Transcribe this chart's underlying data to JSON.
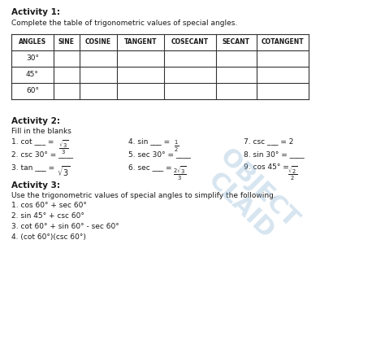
{
  "title_activity1": "Activity 1:",
  "subtitle1": "Complete the table of trigonometric values of special angles.",
  "table_headers": [
    "ANGLES",
    "SINE",
    "COSINE",
    "TANGENT",
    "COSECANT",
    "SECANT",
    "COTANGENT"
  ],
  "table_rows": [
    "30°",
    "45°",
    "60°"
  ],
  "title_activity2": "Activity 2:",
  "fill_blanks_title": "Fill in the blanks",
  "title_activity3": "Activity 3:",
  "subtitle3": "Use the trigonometric values of special angles to simplify the following.",
  "activity3_items": [
    "1. cos 60° + sec 60°",
    "2. sin 45° + csc 60°",
    "3. cot 60° + sin 60° - sec 60°",
    "4. (cot 60°)(csc 60°)"
  ],
  "bg_color": "#ffffff",
  "text_color": "#1a1a1a",
  "watermark_color": "#8ab4d4"
}
